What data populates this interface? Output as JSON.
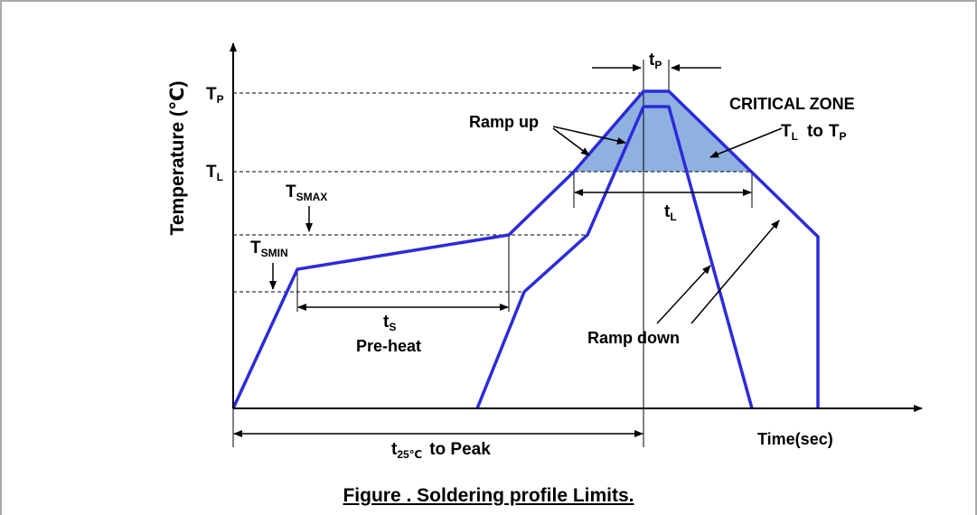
{
  "diagram": {
    "y_axis_label": "Temperature (℃)",
    "x_axis_label": "Time(sec)",
    "tp_level_label": {
      "main": "T",
      "sub": "P"
    },
    "tl_level_label": {
      "main": "T",
      "sub": "L"
    },
    "tsmax_label": {
      "main": "T",
      "sub": "SMAX"
    },
    "tsmin_label": {
      "main": "T",
      "sub": "SMIN"
    },
    "tp_time_label": {
      "main": "t",
      "sub": "P"
    },
    "tl_time_label": {
      "main": "t",
      "sub": "L"
    },
    "ts_label": {
      "main": "t",
      "sub": "S"
    },
    "preheat_label": "Pre-heat",
    "ramp_up_label": "Ramp up",
    "ramp_down_label": "Ramp down",
    "critical_zone": {
      "title": "CRITICAL ZONE",
      "range": {
        "from_main": "T",
        "from_sub": "L",
        "to_word": "to",
        "to_main": "T",
        "to_sub": "P"
      }
    },
    "t25_label": {
      "main": "t",
      "sub": "25℃",
      "suffix": "to Peak"
    }
  },
  "caption": "Figure . Soldering profile Limits.",
  "colors": {
    "profile_line": "#2b2bdb",
    "critical_fill": "#8fb1e0",
    "axis": "#000000"
  }
}
